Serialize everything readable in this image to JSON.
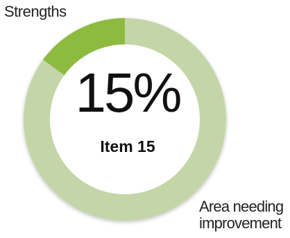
{
  "chart_data": {
    "type": "pie",
    "center_value": "15%",
    "center_label": "Item 15",
    "slices": [
      {
        "name": "Strengths",
        "value": 15,
        "color": "#8dbb3f"
      },
      {
        "name": "Area needing improvement",
        "value": 85,
        "color": "#c4d6a8"
      }
    ],
    "legend_position": "outside-labels"
  },
  "labels": {
    "strengths": "Strengths",
    "area": "Area needing improvement"
  }
}
